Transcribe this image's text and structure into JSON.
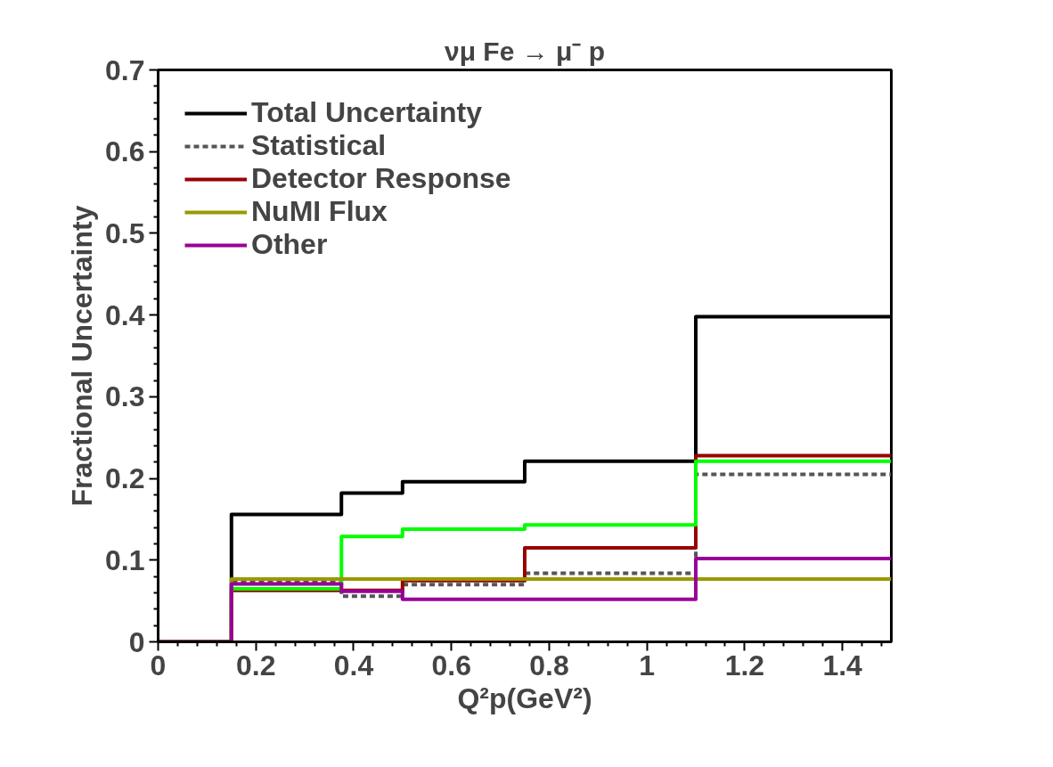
{
  "chart_data": {
    "type": "step",
    "title": "νμ Fe → μ⁻ p",
    "xlabel": "Q²p(GeV²)",
    "ylabel": "Fractional Uncertainty",
    "x": [
      0,
      0.15,
      0.375,
      0.5,
      0.75,
      1.1,
      1.5
    ],
    "series": [
      {
        "name": "Total Uncertainty",
        "color": "#000000",
        "values": [
          0,
          0.156,
          0.182,
          0.196,
          0.221,
          0.398,
          0.398
        ]
      },
      {
        "name": "Statistical",
        "color": "#555555",
        "line_style": "dashed",
        "values": [
          0,
          0.073,
          0.056,
          0.07,
          0.084,
          0.205,
          0.205
        ]
      },
      {
        "name": "Detector Response",
        "color": "#990000",
        "values": [
          0,
          0.063,
          0.063,
          0.075,
          0.115,
          0.228,
          0.228
        ]
      },
      {
        "color": "#00ff00",
        "values": [
          0,
          0.065,
          0.129,
          0.138,
          0.143,
          0.221,
          0.221
        ]
      },
      {
        "name": "NuMI Flux",
        "color": "#999900",
        "values": [
          0,
          0.077,
          0.077,
          0.077,
          0.077,
          0.077,
          0.077
        ]
      },
      {
        "name": "Other",
        "color": "#990099",
        "values": [
          0,
          0.071,
          0.062,
          0.052,
          0.052,
          0.102,
          0.102
        ]
      }
    ],
    "xlim": [
      0,
      1.5
    ],
    "ylim": [
      0,
      0.7
    ],
    "xticks": [
      0,
      0.2,
      0.4,
      0.6,
      0.8,
      1,
      1.2,
      1.4
    ],
    "yticks": [
      0,
      0.1,
      0.2,
      0.3,
      0.4,
      0.5,
      0.6,
      0.7
    ],
    "grid": false,
    "legend": "top left",
    "line_style": "solid"
  }
}
